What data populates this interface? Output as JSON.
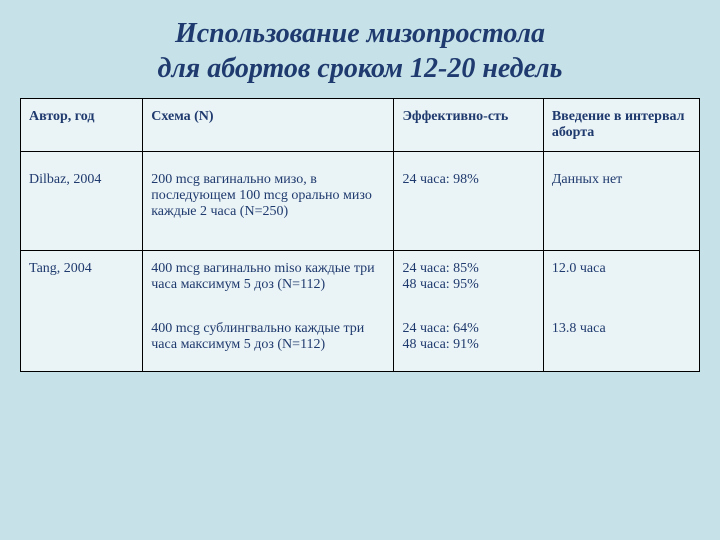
{
  "slide": {
    "title_line1": "Использование мизопростола",
    "title_line2": "для абортов сроком 12-20 недель",
    "background_color": "#c6e2e8",
    "title_color": "#1f3a6e",
    "title_fontsize": 28,
    "title_font_style": "italic",
    "title_font_weight": "bold"
  },
  "table": {
    "background_color": "#eaf3f5",
    "border_color": "#000000",
    "text_color": "#1f3a6e",
    "font_size": 14,
    "columns": [
      {
        "label": "Автор, год",
        "width": "18%"
      },
      {
        "label": "Схема (N)",
        "width": "37%"
      },
      {
        "label": "Эффективно-сть",
        "width": "22%"
      },
      {
        "label": "Введение в интервал аборта",
        "width": "23%"
      }
    ],
    "rows": [
      {
        "author": "Dilbaz, 2004",
        "scheme": "200 mcg вагинально мизо, в последующем 100 mcg орально мизо каждые 2 часа (N=250)",
        "effect": "24 часа: 98%",
        "interval": "Данных нет"
      },
      {
        "author": "Tang, 2004",
        "scheme": "400 mcg вагинально miso каждые три часа максимум 5 доз (N=112)",
        "effect": "24 часа: 85%\n48 часа: 95%",
        "interval": "12.0 часа"
      },
      {
        "author": "",
        "scheme": "400 mcg сублингвально каждые три часа максимум 5 доз (N=112)",
        "effect": "24 часа: 64%\n48 часа: 91%",
        "interval": "13.8 часа"
      }
    ]
  }
}
